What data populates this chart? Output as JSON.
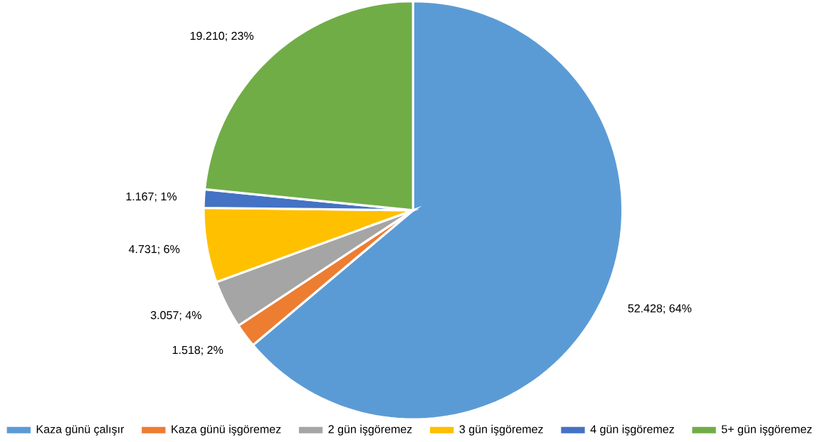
{
  "chart_data": {
    "type": "pie",
    "categories": [
      "Kaza günü çalışır",
      "Kaza günü işgöremez",
      "2 gün işgöremez",
      "3 gün işgöremez",
      "4 gün işgöremez",
      "5+ gün işgöremez"
    ],
    "values": [
      52428,
      1518,
      3057,
      4731,
      1167,
      19210
    ],
    "colors": [
      "#5b9bd5",
      "#ed7d31",
      "#a5a5a5",
      "#ffc000",
      "#4472c4",
      "#70ad47"
    ],
    "value_labels": [
      "52.428; 64%",
      "1.518; 2%",
      "3.057; 4%",
      "4.731; 6%",
      "1.167; 1%",
      "19.210; 23%"
    ],
    "legend": "bottom"
  }
}
